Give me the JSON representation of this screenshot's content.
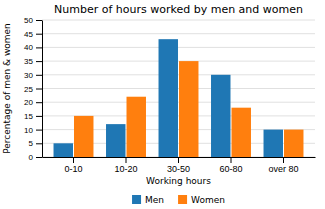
{
  "chart_data": {
    "type": "bar",
    "title": "Number of hours worked by men and women",
    "xlabel": "Working hours",
    "ylabel": "Percentage of men & women",
    "categories": [
      "0-10",
      "10-20",
      "30-50",
      "60-80",
      "over 80"
    ],
    "series": [
      {
        "name": "Men",
        "values": [
          5,
          12,
          43,
          30,
          10
        ]
      },
      {
        "name": "Women",
        "values": [
          15,
          22,
          35,
          18,
          10
        ]
      }
    ],
    "ylim": [
      0,
      50
    ],
    "yticks": [
      0,
      5,
      10,
      15,
      20,
      25,
      30,
      35,
      40,
      45,
      50
    ],
    "grid": true,
    "legend": "bottom"
  }
}
